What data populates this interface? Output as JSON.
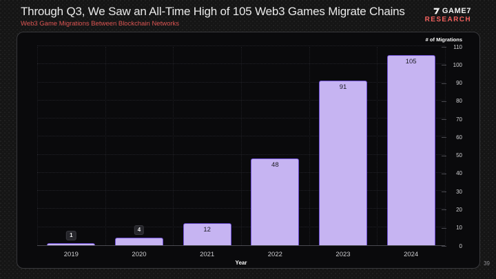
{
  "header": {
    "title": "Through Q3, We Saw an All-Time High of 105 Web3 Games Migrate Chains",
    "subtitle": "Web3 Game Migrations Between Blockchain Networks"
  },
  "logo": {
    "name": "GAME7",
    "sub": "RESEARCH",
    "mark_icon": "game7-seven-mark"
  },
  "page_number": "39",
  "colors": {
    "accent_red": "#dd5553",
    "logo_red": "#f2615e",
    "bar_fill": "#c6b4f2",
    "bar_border": "#6e4fd4",
    "panel_bg": "#0a0a0c",
    "page_bg": "#151515",
    "title_text": "#e9e9e9",
    "axis_text": "#d2d2d4"
  },
  "chart_data": {
    "type": "bar",
    "categories": [
      "2019",
      "2020",
      "2021",
      "2022",
      "2023",
      "2024"
    ],
    "values": [
      1,
      4,
      12,
      48,
      91,
      105
    ],
    "title": "Web3 Game Migrations Between Blockchain Networks",
    "xlabel": "Year",
    "ylabel": "# of Migrations",
    "ylim": [
      0,
      110
    ],
    "ytick_step": 10,
    "grid": true,
    "legend": false,
    "value_labels": true,
    "axis_side": "right"
  }
}
